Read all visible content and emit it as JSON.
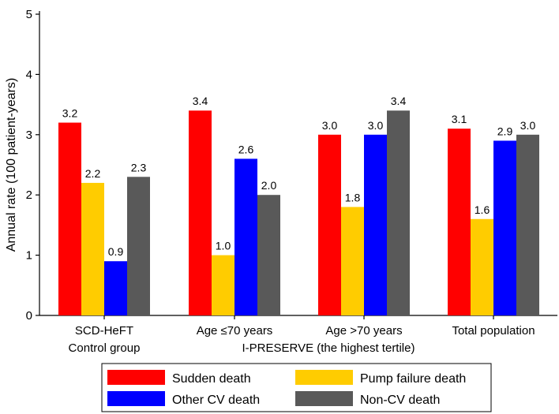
{
  "chart_data": {
    "type": "bar",
    "title": "",
    "ylabel": "Annual rate (100 patient-years)",
    "xlabel": "",
    "ylim": [
      0,
      5
    ],
    "yticks": [
      0,
      1,
      2,
      3,
      4,
      5
    ],
    "grid": false,
    "categories": [
      [
        "SCD-HeFT",
        "Control group"
      ],
      [
        "Age ≤70 years"
      ],
      [
        "Age >70 years"
      ],
      [
        "Total population"
      ]
    ],
    "group_label": "I-PRESERVE (the highest tertile)",
    "series": [
      {
        "name": "Sudden death",
        "color": "#ff0000",
        "values": [
          3.2,
          3.4,
          3.0,
          3.1
        ],
        "labels": [
          "3.2",
          "3.4",
          "3.0",
          "3.1"
        ]
      },
      {
        "name": "Pump failure death",
        "color": "#ffcc00",
        "values": [
          2.2,
          1.0,
          1.8,
          1.6
        ],
        "labels": [
          "2.2",
          "1.0",
          "1.8",
          "1.6"
        ]
      },
      {
        "name": "Other CV death",
        "color": "#0000ff",
        "values": [
          0.9,
          2.6,
          3.0,
          2.9
        ],
        "labels": [
          "0.9",
          "2.6",
          "3.0",
          "2.9"
        ]
      },
      {
        "name": "Non-CV death",
        "color": "#595959",
        "values": [
          2.3,
          2.0,
          3.4,
          3.0
        ],
        "labels": [
          "2.3",
          "2.0",
          "3.4",
          "3.0"
        ]
      }
    ],
    "legend_position": "bottom",
    "legend_order": [
      0,
      1,
      2,
      3
    ]
  }
}
